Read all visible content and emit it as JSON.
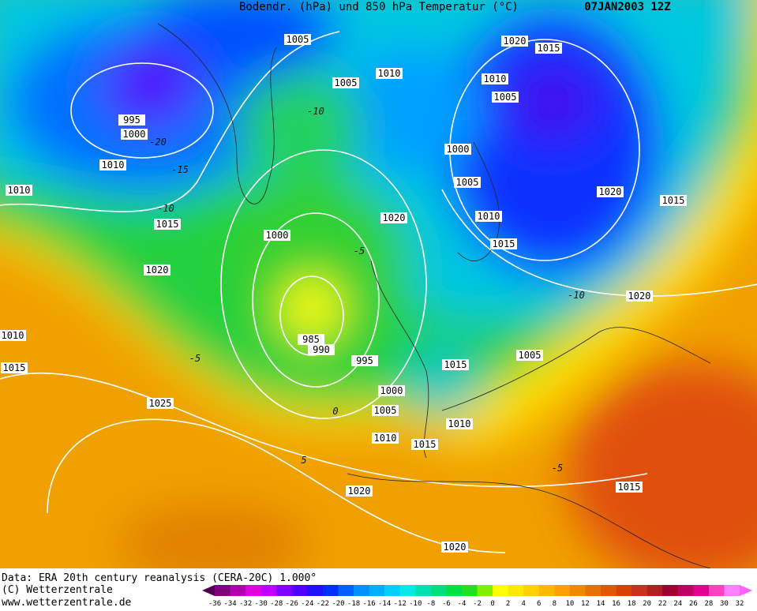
{
  "header": {
    "title": "Bodendr. (hPa) und 850 hPa Temperatur (°C)",
    "date": "07JAN2003 12Z"
  },
  "footer": {
    "source": "Data: ERA 20th century reanalysis (CERA-20C) 1.000°",
    "copyright": "(C) Wetterzentrale",
    "url": "www.wetterzentrale.de"
  },
  "isobar_labels": [
    "1005",
    "1020",
    "1015",
    "1010",
    "1005",
    "1010",
    "1005",
    "995",
    "1000",
    "1000",
    "1010",
    "1005",
    "1020",
    "1015",
    "1010",
    "1020",
    "1010",
    "1015",
    "1015",
    "1000",
    "1020",
    "1020",
    "985",
    "990",
    "995",
    "1015",
    "1005",
    "1000",
    "1025",
    "1005",
    "1010",
    "1010",
    "1015",
    "1020",
    "1015",
    "1020",
    "1010",
    "1015"
  ],
  "temperature_labels": [
    "-10",
    "-15",
    "-20",
    "-10",
    "-5",
    "-5",
    "0",
    "5",
    "-5",
    "-10"
  ],
  "legend": {
    "ticks": [
      -36,
      -34,
      -32,
      -30,
      -28,
      -26,
      -24,
      -22,
      -20,
      -18,
      -16,
      -14,
      -12,
      -10,
      -8,
      -6,
      -4,
      -2,
      0,
      2,
      4,
      6,
      8,
      10,
      12,
      14,
      16,
      18,
      20,
      22,
      24,
      26,
      28,
      30,
      32
    ]
  }
}
